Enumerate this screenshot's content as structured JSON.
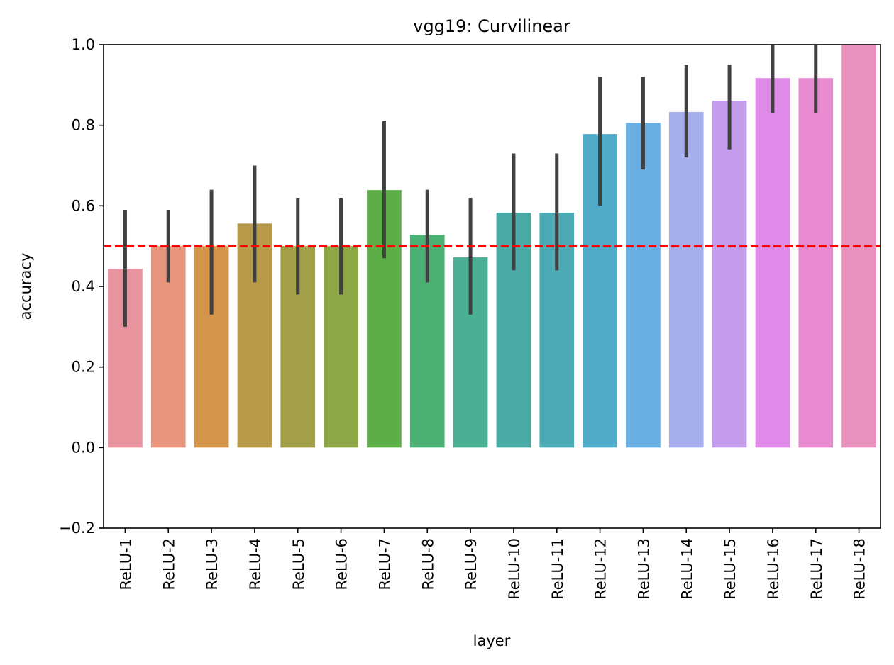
{
  "chart_data": {
    "type": "bar",
    "title": "vgg19: Curvilinear",
    "xlabel": "layer",
    "ylabel": "accuracy",
    "ylim": [
      -0.2,
      1.0
    ],
    "yticks": [
      -0.2,
      0.0,
      0.2,
      0.4,
      0.6,
      0.8,
      1.0
    ],
    "ytick_labels": [
      "−0.2",
      "0.0",
      "0.2",
      "0.4",
      "0.6",
      "0.8",
      "1.0"
    ],
    "categories": [
      "ReLU-1",
      "ReLU-2",
      "ReLU-3",
      "ReLU-4",
      "ReLU-5",
      "ReLU-6",
      "ReLU-7",
      "ReLU-8",
      "ReLU-9",
      "ReLU-10",
      "ReLU-11",
      "ReLU-12",
      "ReLU-13",
      "ReLU-14",
      "ReLU-15",
      "ReLU-16",
      "ReLU-17",
      "ReLU-18"
    ],
    "values": [
      0.444,
      0.5,
      0.5,
      0.556,
      0.5,
      0.5,
      0.639,
      0.528,
      0.472,
      0.583,
      0.583,
      0.778,
      0.806,
      0.833,
      0.861,
      0.917,
      0.917,
      1.0
    ],
    "ci_low": [
      0.3,
      0.41,
      0.33,
      0.41,
      0.38,
      0.38,
      0.47,
      0.41,
      0.33,
      0.44,
      0.44,
      0.6,
      0.69,
      0.72,
      0.74,
      0.83,
      0.83,
      1.0
    ],
    "ci_high": [
      0.59,
      0.59,
      0.64,
      0.7,
      0.62,
      0.62,
      0.81,
      0.64,
      0.62,
      0.73,
      0.73,
      0.92,
      0.92,
      0.95,
      0.95,
      1.0,
      1.0,
      1.0
    ],
    "colors": [
      "#e8939e",
      "#e7967d",
      "#d3954a",
      "#b79b4a",
      "#a39f48",
      "#8ea746",
      "#5eae48",
      "#4caf73",
      "#4aaf93",
      "#4aaaa5",
      "#4baab4",
      "#50abc9",
      "#69aee2",
      "#a5aeea",
      "#c39deb",
      "#df89e9",
      "#e88ad0",
      "#e891bd"
    ],
    "reference_line": {
      "y": 0.5,
      "color": "#ff0000",
      "style": "dashed"
    },
    "errorbar_color": "#404040",
    "grid": false
  }
}
